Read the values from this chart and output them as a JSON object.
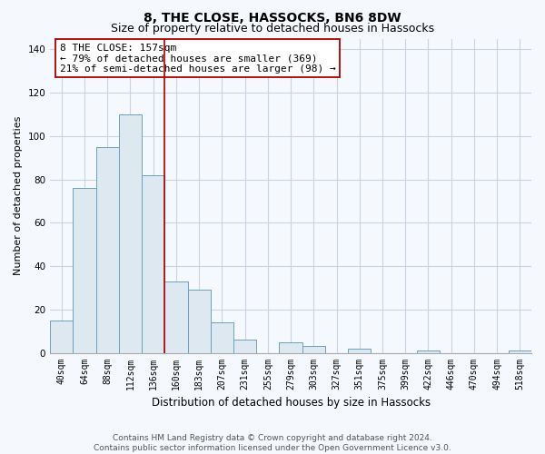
{
  "title": "8, THE CLOSE, HASSOCKS, BN6 8DW",
  "subtitle": "Size of property relative to detached houses in Hassocks",
  "xlabel": "Distribution of detached houses by size in Hassocks",
  "ylabel": "Number of detached properties",
  "bar_labels": [
    "40sqm",
    "64sqm",
    "88sqm",
    "112sqm",
    "136sqm",
    "160sqm",
    "183sqm",
    "207sqm",
    "231sqm",
    "255sqm",
    "279sqm",
    "303sqm",
    "327sqm",
    "351sqm",
    "375sqm",
    "399sqm",
    "422sqm",
    "446sqm",
    "470sqm",
    "494sqm",
    "518sqm"
  ],
  "bar_values": [
    15,
    76,
    95,
    110,
    82,
    33,
    29,
    14,
    6,
    0,
    5,
    3,
    0,
    2,
    0,
    0,
    1,
    0,
    0,
    0,
    1
  ],
  "bar_color": "#dde8f0",
  "bar_edge_color": "#6aa0c0",
  "vline_color": "#aa0000",
  "vline_position": 4.5,
  "ylim": [
    0,
    145
  ],
  "yticks": [
    0,
    20,
    40,
    60,
    80,
    100,
    120,
    140
  ],
  "annotation_title": "8 THE CLOSE: 157sqm",
  "annotation_line1": "← 79% of detached houses are smaller (369)",
  "annotation_line2": "21% of semi-detached houses are larger (98) →",
  "annotation_box_facecolor": "#ffffff",
  "annotation_box_edgecolor": "#aa0000",
  "footer_line1": "Contains HM Land Registry data © Crown copyright and database right 2024.",
  "footer_line2": "Contains public sector information licensed under the Open Government Licence v3.0.",
  "background_color": "#f5f8fc",
  "grid_color": "#c8d4e0",
  "title_fontsize": 10,
  "subtitle_fontsize": 9,
  "ylabel_fontsize": 8,
  "xlabel_fontsize": 8.5,
  "tick_fontsize": 7,
  "ann_fontsize": 8,
  "footer_fontsize": 6.5
}
